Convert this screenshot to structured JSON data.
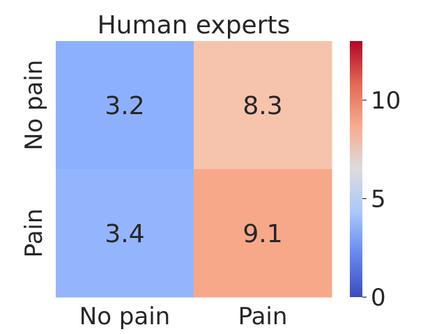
{
  "chart_data": {
    "type": "heatmap",
    "title": "Human experts",
    "xlabel": "",
    "ylabel": "",
    "x_categories": [
      "No pain",
      "Pain"
    ],
    "y_categories": [
      "No pain",
      "Pain"
    ],
    "values": [
      [
        3.2,
        8.3
      ],
      [
        3.4,
        9.1
      ]
    ],
    "cell_colors": [
      [
        "#8db0fe",
        "#f6c4ac"
      ],
      [
        "#93b5fe",
        "#f7a889"
      ]
    ],
    "colormap": "coolwarm",
    "colorbar": {
      "range": [
        0,
        13
      ],
      "ticks": [
        0,
        5,
        10
      ],
      "tick_labels": [
        "0",
        "5",
        "10"
      ],
      "gradient_stops": [
        "#3b4cc0",
        "#6688ee",
        "#aac7fd",
        "#dddcdc",
        "#f7ac8e",
        "#e26952",
        "#b40426"
      ]
    }
  }
}
